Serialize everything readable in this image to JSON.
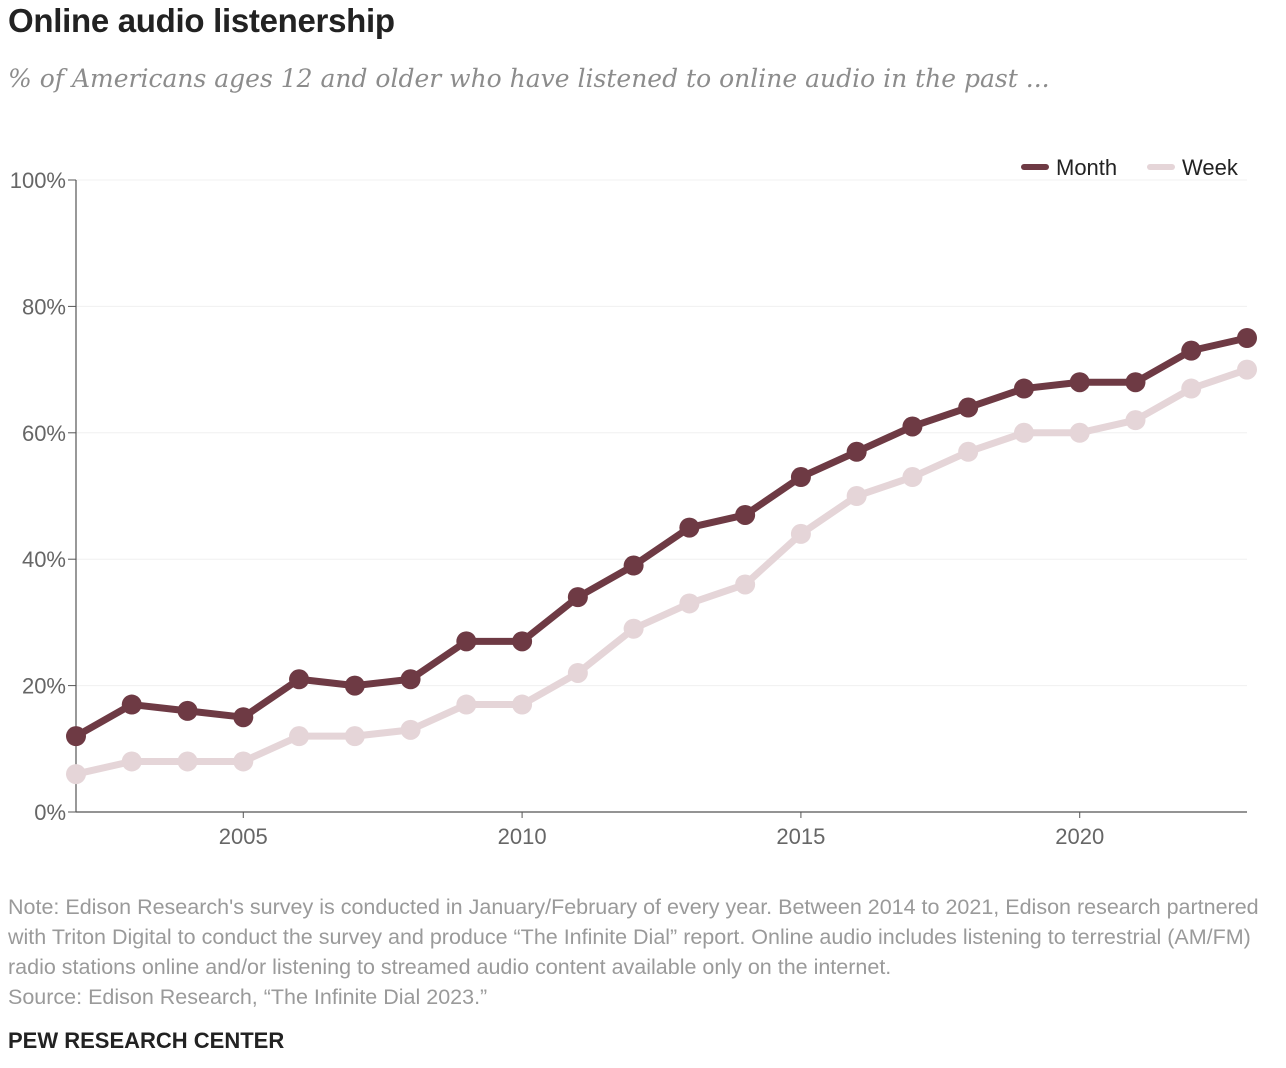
{
  "header": {
    "title": "Online audio listenership",
    "subtitle": "% of Americans ages 12 and older who have listened to online audio in the past ..."
  },
  "chart_data": {
    "type": "line",
    "title": "Online audio listenership",
    "subtitle": "% of Americans ages 12 and older who have listened to online audio in the past ...",
    "xlabel": "",
    "ylabel": "",
    "x": [
      2002,
      2003,
      2004,
      2005,
      2006,
      2007,
      2008,
      2009,
      2010,
      2011,
      2012,
      2013,
      2014,
      2015,
      2016,
      2017,
      2018,
      2019,
      2020,
      2021,
      2022,
      2023
    ],
    "xlim": [
      2002,
      2023
    ],
    "ylim": [
      0,
      100
    ],
    "x_ticks": [
      2005,
      2010,
      2015,
      2020
    ],
    "x_tick_labels": [
      "2005",
      "2010",
      "2015",
      "2020"
    ],
    "y_ticks": [
      0,
      20,
      40,
      60,
      80,
      100
    ],
    "y_tick_labels": [
      "0%",
      "20%",
      "40%",
      "60%",
      "80%",
      "100%"
    ],
    "grid": "horizontal",
    "legend_position": "top-right",
    "series": [
      {
        "name": "Month",
        "color": "#6e3a44",
        "values": [
          12,
          17,
          16,
          15,
          21,
          20,
          21,
          27,
          27,
          34,
          39,
          45,
          47,
          53,
          57,
          61,
          64,
          67,
          68,
          68,
          73,
          75
        ]
      },
      {
        "name": "Week",
        "color": "#e5d5d8",
        "values": [
          6,
          8,
          8,
          8,
          12,
          12,
          13,
          17,
          17,
          22,
          29,
          33,
          36,
          44,
          50,
          53,
          57,
          60,
          60,
          62,
          67,
          70
        ]
      }
    ]
  },
  "footer": {
    "note": "Note: Edison Research's survey is conducted in January/February of every year. Between 2014 to 2021, Edison research partnered with Triton Digital to conduct the survey and produce “The Infinite Dial” report. Online audio includes listening to terrestrial (AM/FM) radio stations online and/or listening to streamed audio content available only on the internet.",
    "source": "Source: Edison Research, “The Infinite Dial 2023.”",
    "brand": "PEW RESEARCH CENTER"
  }
}
